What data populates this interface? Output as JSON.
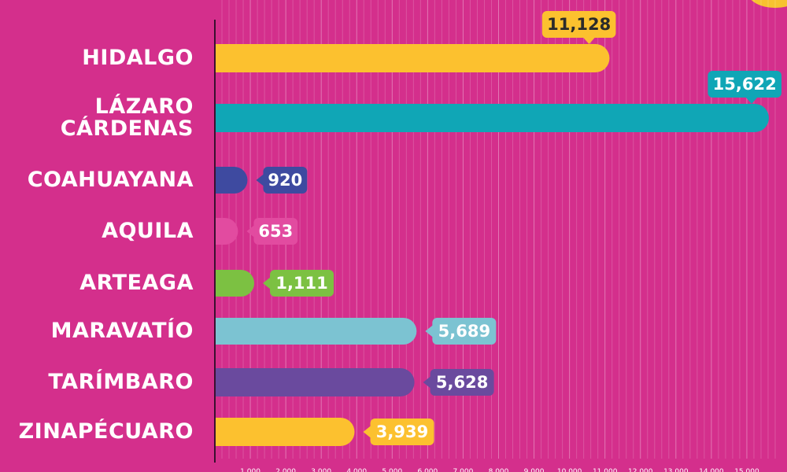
{
  "chart_data": {
    "type": "bar",
    "orientation": "horizontal",
    "categories": [
      "HIDALGO",
      "LÁZARO\nCÁRDENAS",
      "COAHUAYANA",
      "AQUILA",
      "ARTEAGA",
      "MARAVATÍO",
      "TARÍMBARO",
      "ZINAPÉCUARO"
    ],
    "values": [
      11128,
      15622,
      920,
      653,
      1111,
      5689,
      5628,
      3939
    ],
    "value_labels": [
      "11,128",
      "15,622",
      "920",
      "653",
      "1,111",
      "5,689",
      "5,628",
      "3,939"
    ],
    "bar_colors": [
      "#fcc12f",
      "#10a6b6",
      "#3e4aa0",
      "#e24ba0",
      "#7cc142",
      "#7cc3d2",
      "#6a4a9e",
      "#fcc12f"
    ],
    "label_text_colors": [
      "#2b2b2b",
      "#ffffff",
      "#ffffff",
      "#ffffff",
      "#ffffff",
      "#ffffff",
      "#ffffff",
      "#ffffff"
    ],
    "x_ticks": [
      "1,000",
      "2,000",
      "3,000",
      "4,000",
      "5,000",
      "6,000",
      "7,000",
      "8,000",
      "9,000",
      "10,000",
      "11,000",
      "12,000",
      "13,000",
      "14,000",
      "15,000"
    ],
    "xlim": [
      0,
      15800
    ],
    "grid": true,
    "background_color": "#d42f8c",
    "title": "",
    "xlabel": "",
    "ylabel": ""
  }
}
